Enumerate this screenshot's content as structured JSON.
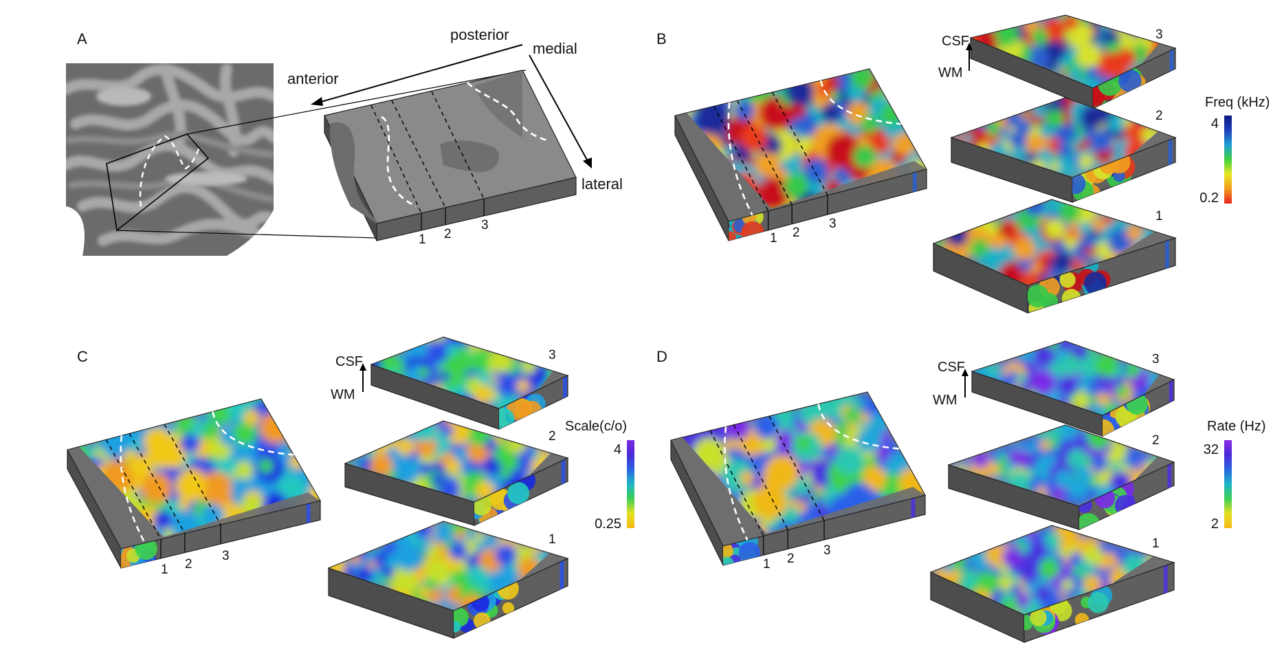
{
  "panels": {
    "A": {
      "letter": "A",
      "directions": {
        "posterior": "posterior",
        "medial": "medial",
        "anterior": "anterior",
        "lateral": "lateral"
      },
      "slice_labels": [
        "1",
        "2",
        "3"
      ]
    },
    "B": {
      "letter": "B",
      "slice_labels": [
        "1",
        "2",
        "3"
      ],
      "depth_labels": [
        "3",
        "2",
        "1"
      ],
      "axis_top": "CSF",
      "axis_bottom": "WM",
      "colorbar": {
        "title": "Freq (kHz)",
        "max": "4",
        "min": "0.2",
        "colors": [
          "#e8231c",
          "#f39a1e",
          "#e8e81e",
          "#3fcf3f",
          "#1fa0d8",
          "#1e3db8",
          "#0a1a80"
        ]
      },
      "palette": [
        "#1a2a9a",
        "#2a5fd0",
        "#19b0c8",
        "#36c94a",
        "#d6e22a",
        "#f0a020",
        "#e83a1c",
        "#c8101a"
      ]
    },
    "C": {
      "letter": "C",
      "slice_labels": [
        "1",
        "2",
        "3"
      ],
      "depth_labels": [
        "3",
        "2",
        "1"
      ],
      "axis_top": "CSF",
      "axis_bottom": "WM",
      "colorbar": {
        "title": "Scale(c/o)",
        "max": "4",
        "min": "0.25",
        "colors": [
          "#f4b816",
          "#e6e020",
          "#3dcf55",
          "#1fb6c8",
          "#2a66e0",
          "#4a2ad8",
          "#7a2ae0"
        ]
      },
      "palette": [
        "#1a2ae0",
        "#2a50e8",
        "#1fa0e0",
        "#22c8c0",
        "#3ed34a",
        "#c6e02a",
        "#f0c818",
        "#f09a20"
      ]
    },
    "D": {
      "letter": "D",
      "slice_labels": [
        "1",
        "2",
        "3"
      ],
      "depth_labels": [
        "3",
        "2",
        "1"
      ],
      "axis_top": "CSF",
      "axis_bottom": "WM",
      "colorbar": {
        "title": "Rate (Hz)",
        "max": "32",
        "min": "2",
        "colors": [
          "#f4b816",
          "#e6e020",
          "#3dcf55",
          "#1fb6c8",
          "#2a66e0",
          "#4a2ad8",
          "#8a2ae6"
        ]
      },
      "palette": [
        "#7a2ae6",
        "#4a30e0",
        "#2a60e8",
        "#1fa8d8",
        "#2ac8b0",
        "#3ed34a",
        "#c8e02a",
        "#f0b818"
      ]
    }
  }
}
